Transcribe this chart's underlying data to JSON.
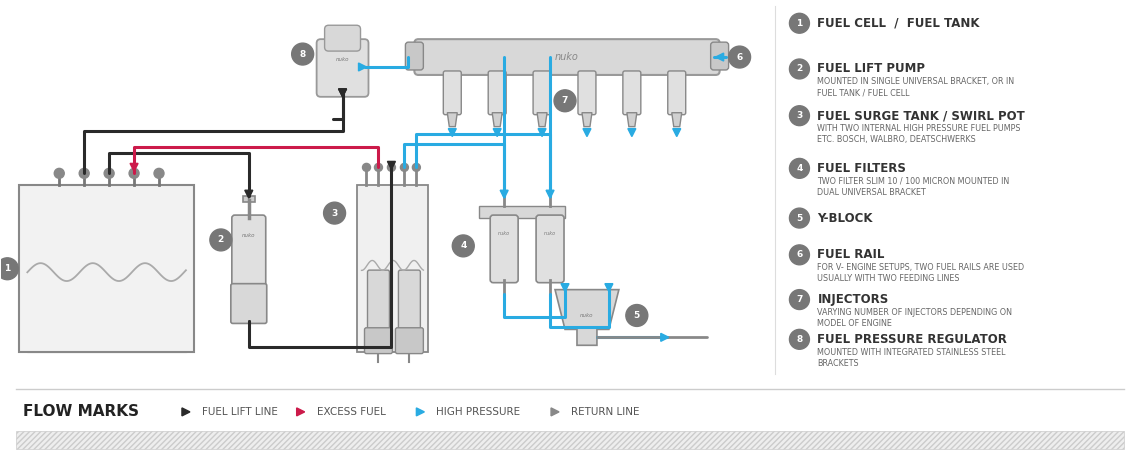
{
  "bg_color": "#ffffff",
  "cyan": "#29abe2",
  "red": "#cc1a4a",
  "black": "#2a2a2a",
  "dgray": "#555555",
  "mgray": "#888888",
  "lgray": "#cccccc",
  "badge_color": "#777777",
  "component_labels": [
    {
      "num": "1",
      "title": "FUEL CELL  /  FUEL TANK",
      "desc": ""
    },
    {
      "num": "2",
      "title": "FUEL LIFT PUMP",
      "desc": "MOUNTED IN SINGLE UNIVERSAL BRACKET, OR IN\nFUEL TANK / FUEL CELL"
    },
    {
      "num": "3",
      "title": "FUEL SURGE TANK / SWIRL POT",
      "desc": "WITH TWO INTERNAL HIGH PRESSURE FUEL PUMPS\nETC. BOSCH, WALBRO, DEATSCHWERKS"
    },
    {
      "num": "4",
      "title": "FUEL FILTERS",
      "desc": "TWO FILTER SLIM 10 / 100 MICRON MOUNTED IN\nDUAL UNIVERSAL BRACKET"
    },
    {
      "num": "5",
      "title": "Y-BLOCK",
      "desc": ""
    },
    {
      "num": "6",
      "title": "FUEL RAIL",
      "desc": "FOR V- ENGINE SETUPS, TWO FUEL RAILS ARE USED\nUSUALLY WITH TWO FEEDING LINES"
    },
    {
      "num": "7",
      "title": "INJECTORS",
      "desc": "VARYING NUMBER OF INJECTORS DEPENDING ON\nMODEL OF ENGINE"
    },
    {
      "num": "8",
      "title": "FUEL PRESSURE REGULATOR",
      "desc": "MOUNTED WITH INTEGRATED STAINLESS STEEL\nBRACKETS"
    }
  ],
  "legend_items": [
    {
      "label": "FUEL LIFT LINE",
      "color": "#2a2a2a"
    },
    {
      "label": "EXCESS FUEL",
      "color": "#cc1a4a"
    },
    {
      "label": "HIGH PRESSURE",
      "color": "#29abe2"
    },
    {
      "label": "RETURN LINE",
      "color": "#888888"
    }
  ]
}
